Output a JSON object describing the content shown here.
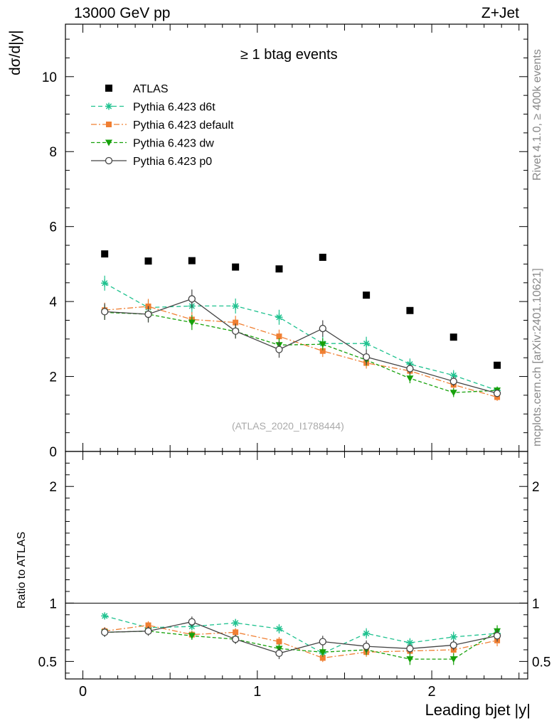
{
  "header": {
    "left": "13000 GeV pp",
    "right": "Z+Jet"
  },
  "side_labels": {
    "rivet": "Rivet 4.1.0, ≥ 400k events",
    "mcplots": "mcplots.cern.ch [arXiv:2401.10621]"
  },
  "chart_data": {
    "type": "scatter",
    "title": "≥ 1 btag events",
    "watermark": "(ATLAS_2020_I1788444)",
    "xlabel": "Leading bjet |y|",
    "ylabel": "dσ/d|y|",
    "ratio_ylabel": "Ratio to ATLAS",
    "xlim": [
      -0.1,
      2.55
    ],
    "ylim": [
      0,
      11.4
    ],
    "ratio_ylim": [
      0.35,
      2.3
    ],
    "xticks": [
      0,
      1,
      2
    ],
    "yticks": [
      0,
      2,
      4,
      6,
      8,
      10
    ],
    "ratio_yticks": [
      0.5,
      1,
      2
    ],
    "x": [
      0.125,
      0.375,
      0.625,
      0.875,
      1.125,
      1.375,
      1.625,
      1.875,
      2.125,
      2.375
    ],
    "reference": {
      "name": "ATLAS",
      "color": "#000000",
      "values": [
        5.27,
        5.08,
        5.09,
        4.92,
        4.87,
        5.18,
        4.17,
        3.76,
        3.05,
        2.3
      ]
    },
    "series": [
      {
        "name": "Pythia 6.423 d6t",
        "color": "#1fc28f",
        "marker": "star",
        "dash": "6,4",
        "values": [
          4.49,
          3.84,
          3.88,
          3.88,
          3.58,
          2.88,
          2.88,
          2.33,
          2.03,
          1.63
        ],
        "errors": [
          0.2,
          0.2,
          0.2,
          0.2,
          0.2,
          0.2,
          0.18,
          0.15,
          0.14,
          0.1
        ],
        "ratio": [
          0.89,
          0.79,
          0.8,
          0.83,
          0.78,
          0.57,
          0.74,
          0.66,
          0.71,
          0.74
        ],
        "ratio_errors": [
          0.03,
          0.03,
          0.03,
          0.035,
          0.04,
          0.04,
          0.045,
          0.04,
          0.045,
          0.05
        ]
      },
      {
        "name": "Pythia 6.423 default",
        "color": "#f07f32",
        "marker": "square",
        "dash": "8,3,2,3",
        "values": [
          3.77,
          3.87,
          3.52,
          3.44,
          3.07,
          2.68,
          2.36,
          2.15,
          1.78,
          1.45
        ],
        "errors": [
          0.2,
          0.2,
          0.2,
          0.18,
          0.18,
          0.16,
          0.15,
          0.13,
          0.12,
          0.1
        ],
        "ratio": [
          0.76,
          0.81,
          0.73,
          0.75,
          0.67,
          0.53,
          0.58,
          0.59,
          0.6,
          0.68
        ],
        "ratio_errors": [
          0.035,
          0.035,
          0.035,
          0.035,
          0.04,
          0.035,
          0.04,
          0.04,
          0.045,
          0.05
        ]
      },
      {
        "name": "Pythia 6.423 dw",
        "color": "#16a10a",
        "marker": "triangle-down",
        "dash": "5,3",
        "values": [
          3.71,
          3.66,
          3.44,
          3.2,
          2.84,
          2.86,
          2.44,
          1.95,
          1.57,
          1.63
        ],
        "errors": [
          0.2,
          0.2,
          0.2,
          0.18,
          0.18,
          0.16,
          0.15,
          0.13,
          0.12,
          0.1
        ],
        "ratio": [
          0.75,
          0.76,
          0.72,
          0.69,
          0.61,
          0.58,
          0.6,
          0.52,
          0.52,
          0.76
        ],
        "ratio_errors": [
          0.035,
          0.035,
          0.035,
          0.035,
          0.04,
          0.04,
          0.045,
          0.05,
          0.05,
          0.05
        ]
      },
      {
        "name": "Pythia 6.423 p0",
        "color": "#444444",
        "marker": "circle-open",
        "dash": "",
        "values": [
          3.73,
          3.66,
          4.07,
          3.21,
          2.72,
          3.28,
          2.52,
          2.21,
          1.87,
          1.55
        ],
        "errors": [
          0.22,
          0.22,
          0.25,
          0.2,
          0.22,
          0.22,
          0.2,
          0.15,
          0.13,
          0.1
        ],
        "ratio": [
          0.75,
          0.76,
          0.84,
          0.69,
          0.57,
          0.67,
          0.63,
          0.61,
          0.64,
          0.72
        ],
        "ratio_errors": [
          0.04,
          0.04,
          0.045,
          0.04,
          0.05,
          0.05,
          0.05,
          0.04,
          0.045,
          0.05
        ]
      }
    ]
  }
}
